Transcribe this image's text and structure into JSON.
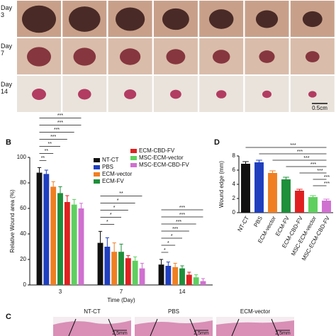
{
  "figure": {
    "panel_labels": [
      "B",
      "C",
      "D"
    ],
    "photo_rows": [
      "Day 3",
      "Day 7",
      "Day 14"
    ],
    "photo_scale": "0.5cm",
    "histology": {
      "titles": [
        "NT-CT",
        "PBS",
        "ECM-vector"
      ],
      "scale": "2.5mm"
    }
  },
  "chart_data": [
    {
      "type": "bar",
      "xlabel": "Time (Day)",
      "ylabel": "Relative Wound area (%)",
      "categories": [
        "3",
        "7",
        "14"
      ],
      "ylim": [
        0,
        100
      ],
      "yticks": [
        0,
        20,
        40,
        60,
        80,
        100
      ],
      "series": [
        {
          "name": "NT-CT",
          "color": "#111111",
          "values": [
            88,
            33,
            16
          ],
          "errors": [
            4,
            9,
            4
          ]
        },
        {
          "name": "PBS",
          "color": "#1f3fbf",
          "values": [
            87,
            30,
            15
          ],
          "errors": [
            3,
            7,
            3
          ]
        },
        {
          "name": "ECM-vector",
          "color": "#f07f22",
          "values": [
            77,
            26,
            14
          ],
          "errors": [
            4,
            7,
            3
          ]
        },
        {
          "name": "ECM-FV",
          "color": "#1e8f3a",
          "values": [
            72,
            26,
            13
          ],
          "errors": [
            5,
            6,
            2
          ]
        },
        {
          "name": "ECM-CBD-FV",
          "color": "#e02020",
          "values": [
            65,
            21,
            8
          ],
          "errors": [
            5,
            2,
            2
          ]
        },
        {
          "name": "MSC-ECM-vector",
          "color": "#5fcf5f",
          "values": [
            63,
            19,
            6
          ],
          "errors": [
            4,
            3,
            2
          ]
        },
        {
          "name": "MSC-ECM-CBD-FV",
          "color": "#d070d0",
          "values": [
            60,
            13,
            3
          ],
          "errors": [
            4,
            4,
            2
          ]
        }
      ],
      "significance": [
        [
          "***",
          "***",
          "***",
          "***",
          "**",
          "**",
          "**"
        ],
        [
          "**",
          "*",
          "*",
          "*",
          "*"
        ],
        [
          "***",
          "***",
          "***",
          "***",
          "*",
          "*",
          "*"
        ]
      ]
    },
    {
      "type": "bar",
      "ylabel": "Wound edge (mm)",
      "categories": [
        "NT-CT",
        "PBS",
        "ECM-vector",
        "ECM-FV",
        "ECM-CBD-FV",
        "MSC-ECM-vector",
        "MSC-ECM-CBD-FV"
      ],
      "values": [
        6.9,
        7.1,
        5.6,
        4.7,
        3.1,
        2.2,
        1.7
      ],
      "errors": [
        0.3,
        0.3,
        0.3,
        0.3,
        0.2,
        0.2,
        0.2
      ],
      "colors": [
        "#111111",
        "#1f3fbf",
        "#f07f22",
        "#1e8f3a",
        "#e02020",
        "#5fcf5f",
        "#d070d0"
      ],
      "ylim": [
        0,
        8
      ],
      "yticks": [
        0,
        2,
        4,
        6,
        8
      ],
      "significance": [
        "***",
        "***",
        "***",
        "***",
        "***",
        "***",
        "***"
      ]
    }
  ]
}
